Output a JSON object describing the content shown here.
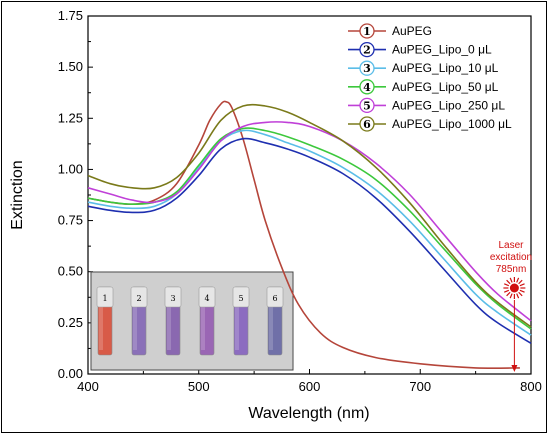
{
  "chart_data": {
    "type": "line",
    "xlabel": "Wavelength (nm)",
    "ylabel": "Extinction",
    "xlim": [
      400,
      800
    ],
    "ylim": [
      0,
      1.75
    ],
    "xticks": [
      "400",
      "500",
      "600",
      "700",
      "800"
    ],
    "yticks": [
      "0.00",
      "0.25",
      "0.50",
      "0.75",
      "1.00",
      "1.25",
      "1.50",
      "1.75"
    ],
    "grid": false,
    "legend_placement": "top-right",
    "series": [
      {
        "name": "AuPEG",
        "marker": "1",
        "color": "#b5453a",
        "x": [
          400,
          420,
          440,
          460,
          480,
          500,
          510,
          520,
          525,
          530,
          540,
          550,
          560,
          575,
          590,
          610,
          630,
          660,
          700,
          750,
          790
        ],
        "y": [
          0.86,
          0.84,
          0.83,
          0.85,
          0.93,
          1.12,
          1.24,
          1.32,
          1.33,
          1.3,
          1.15,
          0.95,
          0.75,
          0.52,
          0.34,
          0.2,
          0.13,
          0.08,
          0.05,
          0.03,
          0.03
        ]
      },
      {
        "name": "AuPEG_Lipo_0 μL",
        "marker": "2",
        "color": "#1e2fb0",
        "x": [
          400,
          420,
          440,
          460,
          480,
          500,
          520,
          540,
          560,
          580,
          600,
          630,
          660,
          690,
          720,
          750,
          770,
          800
        ],
        "y": [
          0.82,
          0.8,
          0.79,
          0.8,
          0.86,
          0.97,
          1.1,
          1.15,
          1.13,
          1.1,
          1.06,
          0.98,
          0.86,
          0.7,
          0.52,
          0.34,
          0.25,
          0.15
        ]
      },
      {
        "name": "AuPEG_Lipo_10 μL",
        "marker": "3",
        "color": "#5bbde8",
        "x": [
          400,
          420,
          440,
          460,
          480,
          500,
          520,
          540,
          560,
          580,
          600,
          630,
          660,
          690,
          720,
          750,
          770,
          800
        ],
        "y": [
          0.84,
          0.82,
          0.81,
          0.82,
          0.88,
          1.01,
          1.14,
          1.19,
          1.17,
          1.13,
          1.09,
          1.01,
          0.9,
          0.75,
          0.57,
          0.39,
          0.3,
          0.19
        ]
      },
      {
        "name": "AuPEG_Lipo_50 μL",
        "marker": "4",
        "color": "#3cc83c",
        "x": [
          400,
          420,
          440,
          460,
          480,
          500,
          520,
          540,
          560,
          580,
          600,
          630,
          660,
          690,
          720,
          750,
          770,
          800
        ],
        "y": [
          0.86,
          0.84,
          0.83,
          0.84,
          0.89,
          1.02,
          1.15,
          1.2,
          1.19,
          1.16,
          1.12,
          1.05,
          0.95,
          0.8,
          0.62,
          0.44,
          0.34,
          0.22
        ]
      },
      {
        "name": "AuPEG_Lipo_250 μL",
        "marker": "5",
        "color": "#c040d8",
        "x": [
          400,
          420,
          440,
          460,
          480,
          500,
          520,
          540,
          560,
          580,
          600,
          630,
          660,
          690,
          720,
          750,
          770,
          800
        ],
        "y": [
          0.91,
          0.88,
          0.85,
          0.84,
          0.88,
          1.0,
          1.14,
          1.21,
          1.23,
          1.23,
          1.21,
          1.14,
          1.03,
          0.88,
          0.69,
          0.5,
          0.39,
          0.26
        ]
      },
      {
        "name": "AuPEG_Lipo_1000 μL",
        "marker": "6",
        "color": "#7a7a1a",
        "x": [
          400,
          420,
          440,
          460,
          480,
          500,
          520,
          540,
          560,
          580,
          600,
          630,
          660,
          690,
          720,
          750,
          770,
          800
        ],
        "y": [
          0.97,
          0.93,
          0.91,
          0.91,
          0.96,
          1.08,
          1.24,
          1.31,
          1.31,
          1.28,
          1.23,
          1.14,
          1.01,
          0.84,
          0.64,
          0.45,
          0.35,
          0.23
        ]
      }
    ],
    "annotations": {
      "laser_line1": "Laser",
      "laser_line2": "excitation",
      "laser_line3": "785nm",
      "laser_x": 785,
      "laser_color": "#d01010"
    },
    "inset": {
      "vial_labels": [
        "1",
        "2",
        "3",
        "4",
        "5",
        "6"
      ],
      "vial_colors": [
        "#d85b48",
        "#8a70b8",
        "#8a68b0",
        "#9a66b4",
        "#8c6cc0",
        "#7070a8"
      ]
    }
  }
}
